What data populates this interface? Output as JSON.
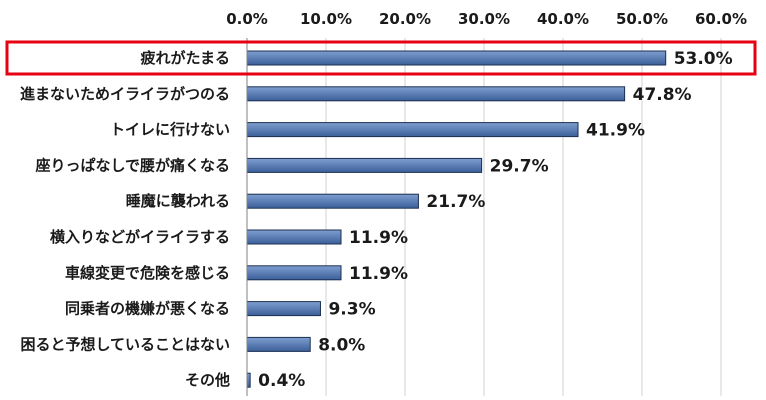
{
  "chart_data": {
    "type": "bar",
    "orientation": "horizontal",
    "categories": [
      "疲れがたまる",
      "進まないためイライラがつのる",
      "トイレに行けない",
      "座りっぱなしで腰が痛くなる",
      "睡魔に襲われる",
      "横入りなどがイライラする",
      "車線変更で危険を感じる",
      "同乗者の機嫌が悪くなる",
      "困ると予想していることはない",
      "その他"
    ],
    "values": [
      53.0,
      47.8,
      41.9,
      29.7,
      21.7,
      11.9,
      11.9,
      9.3,
      8.0,
      0.4
    ],
    "value_labels": [
      "53.0%",
      "47.8%",
      "41.9%",
      "29.7%",
      "21.7%",
      "11.9%",
      "11.9%",
      "9.3%",
      "8.0%",
      "0.4%"
    ],
    "x_ticks": [
      "0.0%",
      "10.0%",
      "20.0%",
      "30.0%",
      "40.0%",
      "50.0%",
      "60.0%"
    ],
    "xlim": [
      0,
      60
    ],
    "x_axis_position": "top",
    "grid": true,
    "highlighted_category_index": 0,
    "colors": {
      "bar_fill_top": "#7f9fd0",
      "bar_fill_bottom": "#3b5f99",
      "bar_stroke": "#1c2f52",
      "grid": "#d0d0d0",
      "highlight_box": "#e60012"
    }
  }
}
